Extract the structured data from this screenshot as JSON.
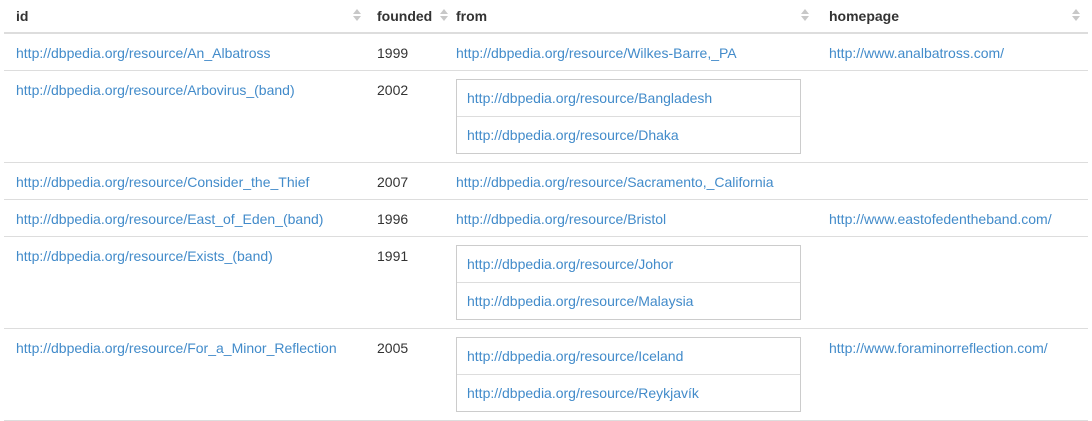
{
  "columns": {
    "id": "id",
    "founded": "founded",
    "from": "from",
    "homepage": "homepage"
  },
  "rows": [
    {
      "id": "http://dbpedia.org/resource/An_Albatross",
      "founded": "1999",
      "from": [
        "http://dbpedia.org/resource/Wilkes-Barre,_PA"
      ],
      "homepage": "http://www.analbatross.com/"
    },
    {
      "id": "http://dbpedia.org/resource/Arbovirus_(band)",
      "founded": "2002",
      "from": [
        "http://dbpedia.org/resource/Bangladesh",
        "http://dbpedia.org/resource/Dhaka"
      ],
      "homepage": ""
    },
    {
      "id": "http://dbpedia.org/resource/Consider_the_Thief",
      "founded": "2007",
      "from": [
        "http://dbpedia.org/resource/Sacramento,_California"
      ],
      "homepage": ""
    },
    {
      "id": "http://dbpedia.org/resource/East_of_Eden_(band)",
      "founded": "1996",
      "from": [
        "http://dbpedia.org/resource/Bristol"
      ],
      "homepage": "http://www.eastofedentheband.com/"
    },
    {
      "id": "http://dbpedia.org/resource/Exists_(band)",
      "founded": "1991",
      "from": [
        "http://dbpedia.org/resource/Johor",
        "http://dbpedia.org/resource/Malaysia"
      ],
      "homepage": ""
    },
    {
      "id": "http://dbpedia.org/resource/For_a_Minor_Reflection",
      "founded": "2005",
      "from": [
        "http://dbpedia.org/resource/Iceland",
        "http://dbpedia.org/resource/Reykjavík"
      ],
      "homepage": "http://www.foraminorreflection.com/"
    }
  ],
  "colors": {
    "link": "#428bca",
    "text": "#333333",
    "border": "#dddddd",
    "sort_icon": "#c8c8c8"
  },
  "icons": {
    "sort": "sort-up-down-icon"
  }
}
